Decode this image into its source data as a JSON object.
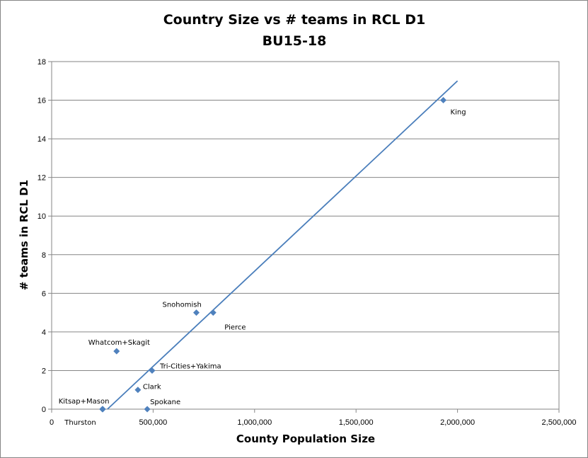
{
  "chart_data": {
    "type": "scatter",
    "title": "Country Size vs # teams in RCL D1",
    "subtitle": "BU15-18",
    "xlabel": "County Population Size",
    "ylabel": "# teams in RCL D1",
    "xlim": [
      0,
      2500000
    ],
    "ylim": [
      0,
      18
    ],
    "x_ticks": [
      0,
      500000,
      1000000,
      1500000,
      2000000,
      2500000
    ],
    "x_tick_labels": [
      "0",
      "500,000",
      "1,000,000",
      "1,500,000",
      "2,000,000",
      "2,500,000"
    ],
    "y_ticks": [
      0,
      2,
      4,
      6,
      8,
      10,
      12,
      14,
      16,
      18
    ],
    "y_tick_labels": [
      "0",
      "2",
      "4",
      "6",
      "8",
      "10",
      "12",
      "14",
      "16",
      "18"
    ],
    "grid": true,
    "marker_color": "#4f81bd",
    "trendline_color": "#4a7ebb",
    "points": [
      {
        "label": "King",
        "x": 1930000,
        "y": 16
      },
      {
        "label": "Snohomish",
        "x": 713000,
        "y": 5
      },
      {
        "label": "Pierce",
        "x": 796000,
        "y": 5
      },
      {
        "label": "Whatcom+Skagit",
        "x": 320000,
        "y": 3
      },
      {
        "label": "Tri-Cities+Yakima",
        "x": 495000,
        "y": 2
      },
      {
        "label": "Clark",
        "x": 425000,
        "y": 1
      },
      {
        "label": "Kitsap+Mason",
        "x": 250000,
        "y": 0
      },
      {
        "label": "Thurston",
        "x": 252000,
        "y": 0
      },
      {
        "label": "Spokane",
        "x": 471000,
        "y": 0
      }
    ],
    "trendline": {
      "x": [
        275000,
        2000000
      ],
      "y": [
        0,
        17
      ]
    }
  }
}
